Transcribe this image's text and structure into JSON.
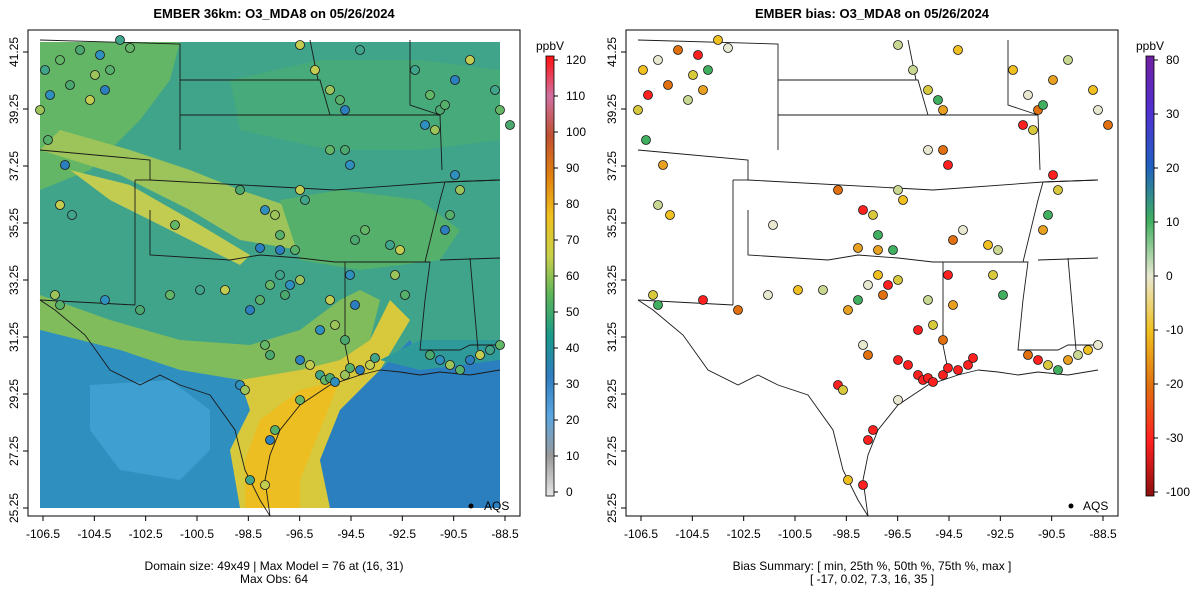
{
  "left_panel": {
    "title": "EMBER 36km: O3_MDA8 on 05/26/2024",
    "x_ticks": [
      "-106.5",
      "-104.5",
      "-102.5",
      "-100.5",
      "-98.5",
      "-96.5",
      "-94.5",
      "-92.5",
      "-90.5",
      "-88.5"
    ],
    "y_ticks": [
      "25.25",
      "27.25",
      "29.25",
      "31.25",
      "33.25",
      "35.25",
      "37.25",
      "39.25",
      "41.25"
    ],
    "colorbar": {
      "unit": "ppbV",
      "ticks": [
        "0",
        "10",
        "20",
        "30",
        "40",
        "50",
        "60",
        "70",
        "80",
        "90",
        "100",
        "110",
        "120"
      ],
      "stops": [
        "#e6e6e6",
        "#9a9a9a",
        "#5aa6e0",
        "#2f7dc0",
        "#1a9a8a",
        "#5ab45a",
        "#c8d04a",
        "#f0c020",
        "#e08010",
        "#c05030",
        "#d070a0",
        "#ff1010"
      ]
    },
    "legend_label": "AQS",
    "footer_line1": "Domain size: 49x49 | Max Model = 76 at (16, 31)",
    "footer_line2": "Max Obs: 64"
  },
  "right_panel": {
    "title": "EMBER bias: O3_MDA8 on 05/26/2024",
    "x_ticks": [
      "-106.5",
      "-104.5",
      "-102.5",
      "-100.5",
      "-98.5",
      "-96.5",
      "-94.5",
      "-92.5",
      "-90.5",
      "-88.5"
    ],
    "y_ticks": [
      "25.25",
      "27.25",
      "29.25",
      "31.25",
      "33.25",
      "35.25",
      "37.25",
      "39.25",
      "41.25"
    ],
    "colorbar": {
      "unit": "ppbV",
      "ticks": [
        "80",
        "30",
        "20",
        "10",
        "0",
        "-10",
        "-20",
        "-30",
        "-100"
      ],
      "stops": [
        "#8a1010",
        "#ff2020",
        "#e07010",
        "#f0c020",
        "#e8e8d0",
        "#40b060",
        "#2060c0",
        "#5030d0",
        "#7020a0"
      ]
    },
    "legend_label": "AQS",
    "footer_line1": "Bias Summary: [ min, 25th %, 50th %, 75th %, max ]",
    "footer_line2": "[ -17,  0.02,  7.3,  16,  35 ]"
  }
}
